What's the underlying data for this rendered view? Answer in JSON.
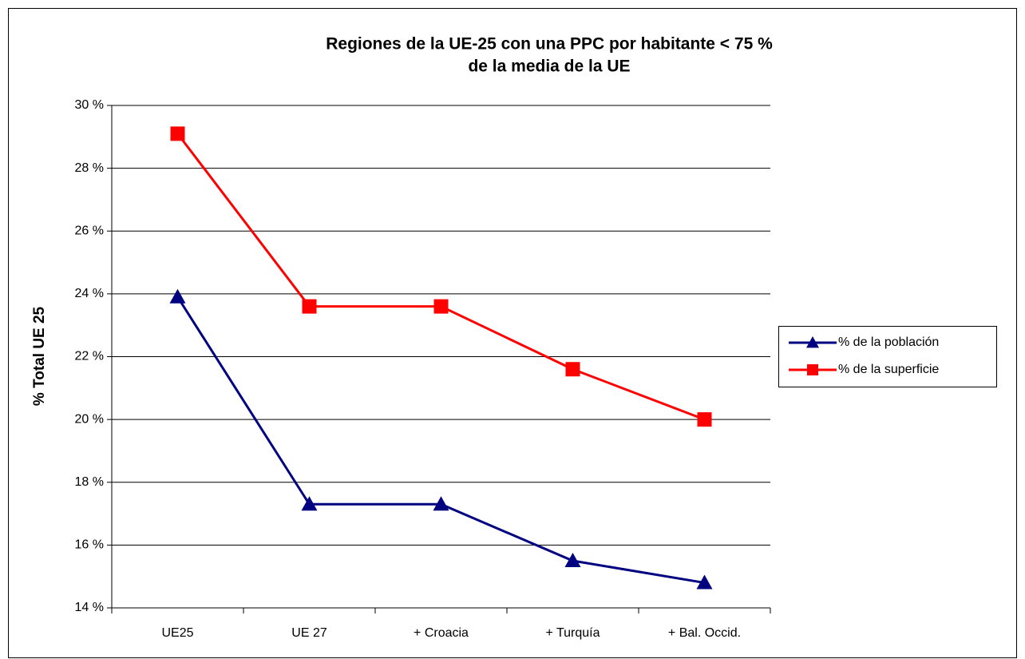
{
  "chart_data": {
    "type": "line",
    "title": [
      "Regiones de la UE-25 con una PPC por habitante < 75 %",
      "de la media de la UE"
    ],
    "y_label": "% Total UE 25",
    "categories": [
      "UE25",
      "UE 27",
      "+ Croacia",
      "+ Turquía",
      "+ Bal. Occid."
    ],
    "series": [
      {
        "name": "% de la población",
        "color": "#000080",
        "marker": "triangle",
        "values": [
          23.9,
          17.3,
          17.3,
          15.5,
          14.8
        ]
      },
      {
        "name": "% de la superficie",
        "color": "#ff0000",
        "marker": "square",
        "values": [
          29.1,
          23.6,
          23.6,
          21.6,
          20.0
        ]
      }
    ],
    "ylim": [
      14,
      30
    ],
    "yticks": [
      {
        "value": 14,
        "label": "14 %"
      },
      {
        "value": 16,
        "label": "16 %"
      },
      {
        "value": 18,
        "label": "18 %"
      },
      {
        "value": 20,
        "label": "20 %"
      },
      {
        "value": 22,
        "label": "22 %"
      },
      {
        "value": 24,
        "label": "24 %"
      },
      {
        "value": 26,
        "label": "26 %"
      },
      {
        "value": 28,
        "label": "28 %"
      },
      {
        "value": 30,
        "label": "30 %"
      }
    ],
    "grid": true,
    "legend": "right"
  }
}
